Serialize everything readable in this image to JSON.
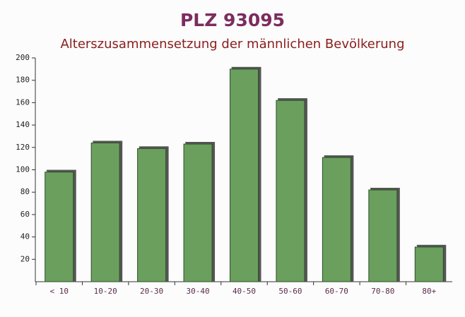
{
  "chart_data": {
    "type": "bar",
    "title": "PLZ 93095",
    "subtitle": "Alterszusammensetzung der männlichen Bevölkerung",
    "categories": [
      "< 10",
      "10-20",
      "20-30",
      "30-40",
      "40-50",
      "50-60",
      "60-70",
      "70-80",
      "80+"
    ],
    "values": [
      98,
      124,
      119,
      123,
      190,
      162,
      111,
      82,
      31
    ],
    "color": "#6a9f5e",
    "ylim": [
      0,
      200
    ],
    "yticks": [
      20,
      40,
      60,
      80,
      100,
      120,
      140,
      160,
      180,
      200
    ]
  }
}
